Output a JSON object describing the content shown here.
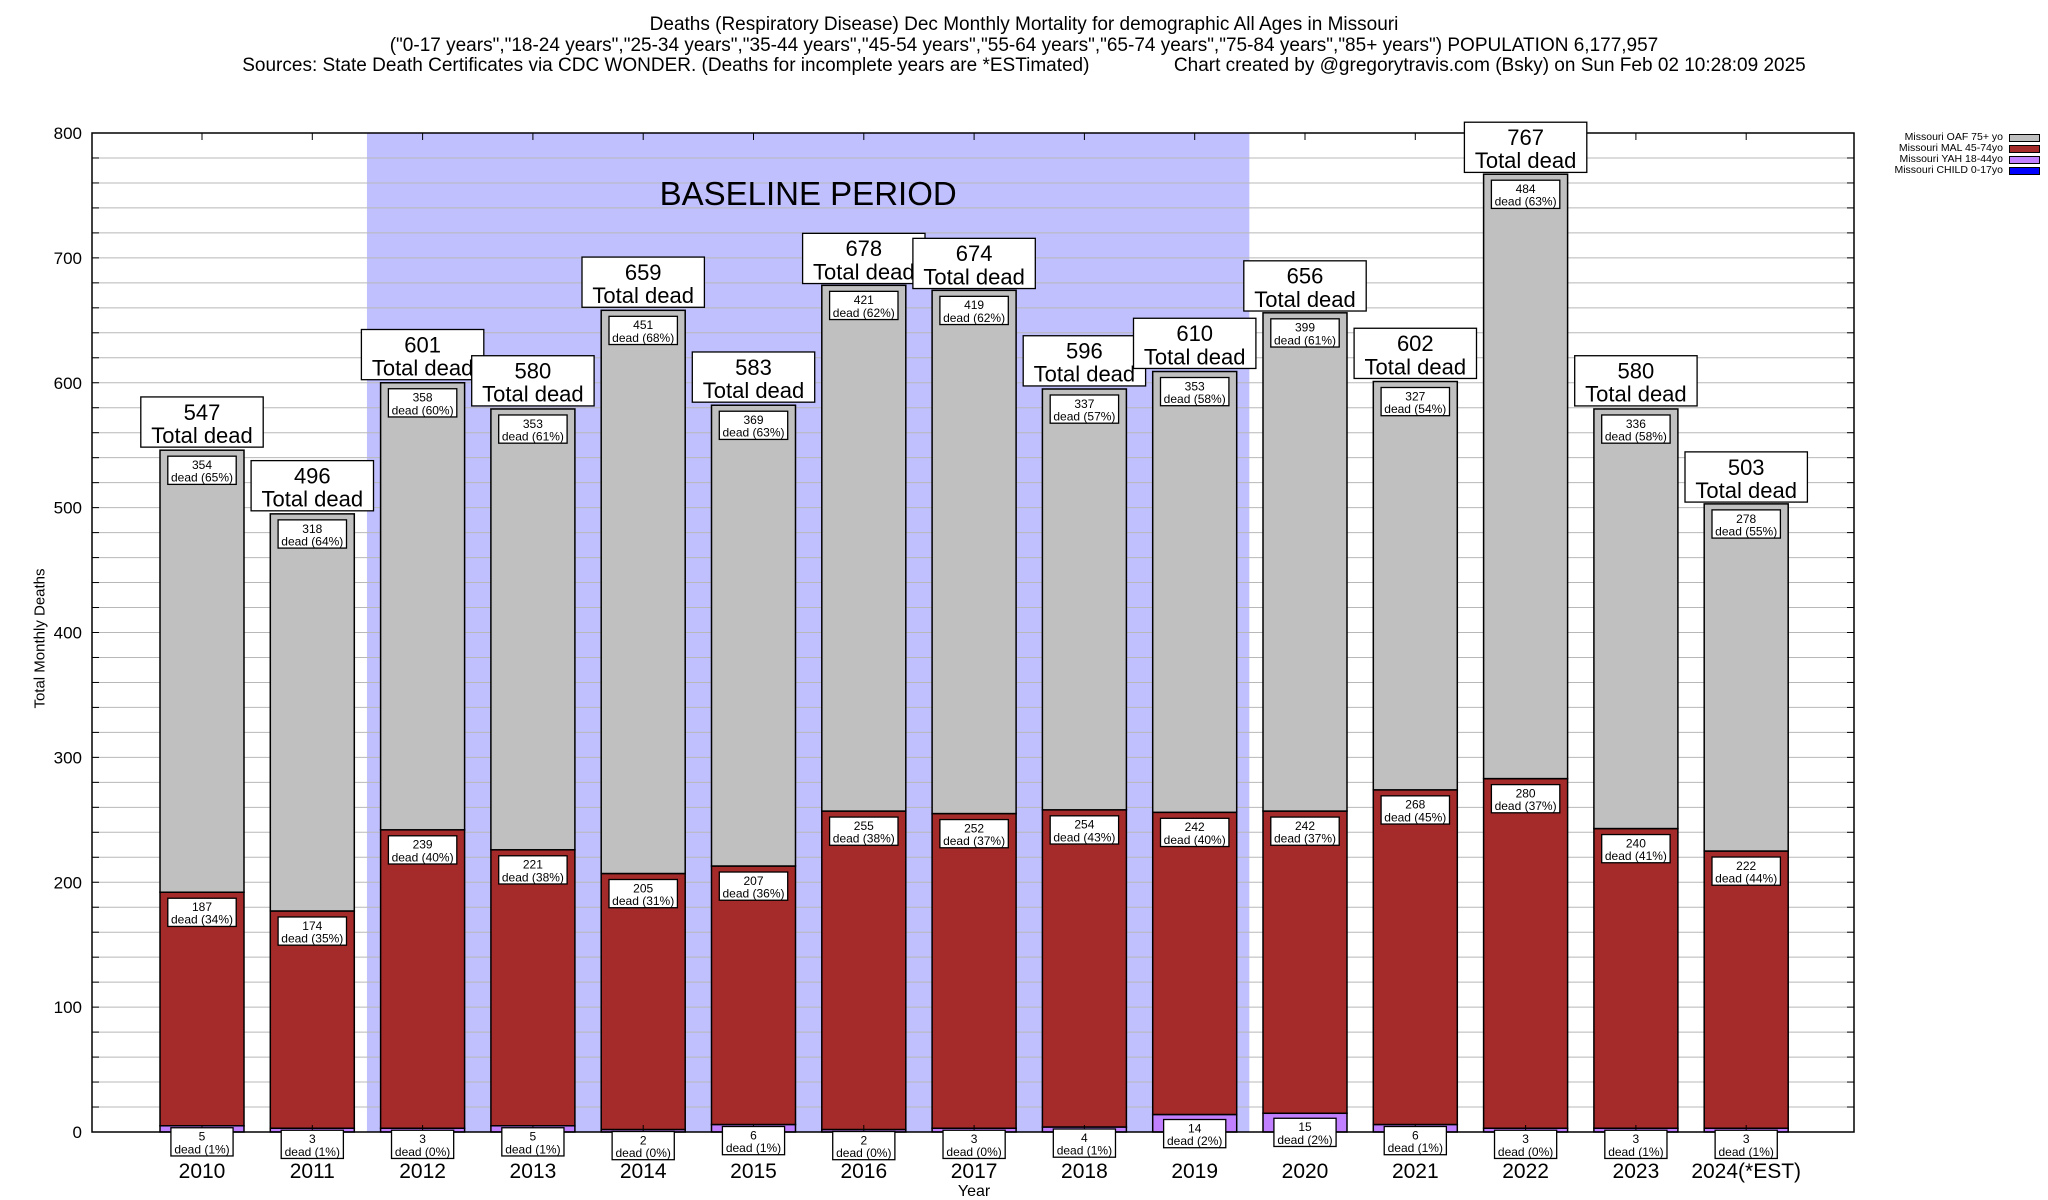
{
  "title": {
    "line1": "Deaths (Respiratory Disease) Dec Monthly Mortality for demographic All Ages in Missouri",
    "line2": "(\"0-17 years\",\"18-24 years\",\"25-34 years\",\"35-44 years\",\"45-54 years\",\"55-64 years\",\"65-74 years\",\"75-84 years\",\"85+ years\") POPULATION 6,177,957",
    "line3": "Sources: State Death Certificates via CDC WONDER. (Deaths for incomplete years are *ESTimated)                Chart created by @gregorytravis.com (Bsky) on Sun Feb 02 10:28:09 2025"
  },
  "chart_data": {
    "type": "bar",
    "stacked": true,
    "title": "Deaths (Respiratory Disease) Dec Monthly Mortality for demographic All Ages in Missouri",
    "xlabel": "Year",
    "ylabel": "Total Monthly Deaths",
    "ylim": [
      0,
      800
    ],
    "yticks": [
      0,
      100,
      200,
      300,
      400,
      500,
      600,
      700,
      800
    ],
    "minor_grid_step": 20,
    "grid": true,
    "legend_position": "top-right (outside)",
    "categories": [
      "2010",
      "2011",
      "2012",
      "2013",
      "2014",
      "2015",
      "2016",
      "2017",
      "2018",
      "2019",
      "2020",
      "2021",
      "2022",
      "2023",
      "2024(*EST)"
    ],
    "series": [
      {
        "name": "Missouri CHILD 0-17yo",
        "color": "#0000ff",
        "values": [
          0,
          0,
          0,
          0,
          0,
          0,
          0,
          0,
          0,
          0,
          0,
          0,
          0,
          0,
          0
        ]
      },
      {
        "name": "Missouri YAH 18-44yo",
        "color": "#c080ff",
        "values": [
          5,
          3,
          3,
          5,
          2,
          6,
          2,
          3,
          4,
          14,
          15,
          6,
          3,
          3,
          3
        ],
        "pct_labels": [
          "1%",
          "1%",
          "0%",
          "1%",
          "0%",
          "1%",
          "0%",
          "0%",
          "1%",
          "2%",
          "2%",
          "1%",
          "0%",
          "1%",
          "1%"
        ]
      },
      {
        "name": "Missouri MAL 45-74yo",
        "color": "#a52a2a",
        "values": [
          187,
          174,
          239,
          221,
          205,
          207,
          255,
          252,
          254,
          242,
          242,
          268,
          280,
          240,
          222
        ],
        "pct_labels": [
          "34%",
          "35%",
          "40%",
          "38%",
          "31%",
          "36%",
          "38%",
          "37%",
          "43%",
          "40%",
          "37%",
          "45%",
          "37%",
          "41%",
          "44%"
        ]
      },
      {
        "name": "Missouri OAF 75+ yo",
        "color": "#c0c0c0",
        "values": [
          354,
          318,
          358,
          353,
          451,
          369,
          421,
          419,
          337,
          353,
          399,
          327,
          484,
          336,
          278
        ],
        "pct_labels": [
          "65%",
          "64%",
          "60%",
          "61%",
          "68%",
          "63%",
          "62%",
          "62%",
          "57%",
          "58%",
          "61%",
          "54%",
          "63%",
          "58%",
          "55%"
        ]
      }
    ],
    "totals": [
      547,
      496,
      601,
      580,
      659,
      583,
      678,
      674,
      596,
      610,
      656,
      602,
      767,
      580,
      503
    ],
    "total_label_suffix": "Total dead",
    "segment_label_prefix": "dead",
    "baseline_period": {
      "label": "BASELINE PERIOD",
      "from": "2012",
      "to": "2019",
      "color": "#c0c0ff"
    }
  },
  "legend": [
    {
      "label": "Missouri OAF 75+ yo",
      "color": "#c0c0c0"
    },
    {
      "label": "Missouri MAL 45-74yo",
      "color": "#a52a2a"
    },
    {
      "label": "Missouri YAH 18-44yo",
      "color": "#c080ff"
    },
    {
      "label": "Missouri CHILD 0-17yo",
      "color": "#0000ff"
    }
  ]
}
